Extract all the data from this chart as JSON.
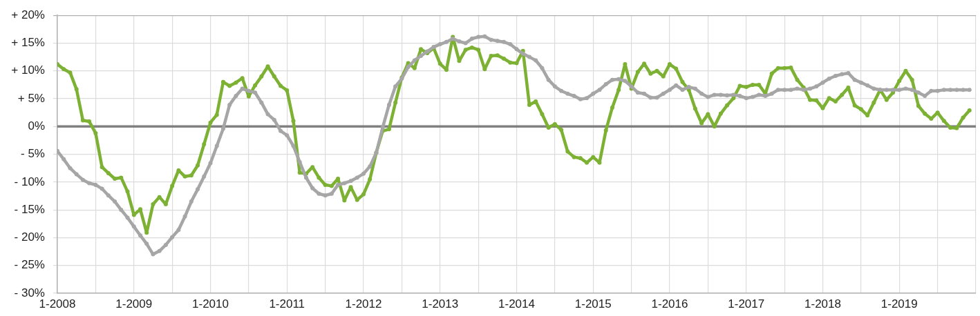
{
  "chart_data": {
    "type": "line",
    "x": [
      "2008-01",
      "2008-02",
      "2008-03",
      "2008-04",
      "2008-05",
      "2008-06",
      "2008-07",
      "2008-08",
      "2008-09",
      "2008-10",
      "2008-11",
      "2008-12",
      "2009-01",
      "2009-02",
      "2009-03",
      "2009-04",
      "2009-05",
      "2009-06",
      "2009-07",
      "2009-08",
      "2009-09",
      "2009-10",
      "2009-11",
      "2009-12",
      "2010-01",
      "2010-02",
      "2010-03",
      "2010-04",
      "2010-05",
      "2010-06",
      "2010-07",
      "2010-08",
      "2010-09",
      "2010-10",
      "2010-11",
      "2010-12",
      "2011-01",
      "2011-02",
      "2011-03",
      "2011-04",
      "2011-05",
      "2011-06",
      "2011-07",
      "2011-08",
      "2011-09",
      "2011-10",
      "2011-11",
      "2011-12",
      "2012-01",
      "2012-02",
      "2012-03",
      "2012-04",
      "2012-05",
      "2012-06",
      "2012-07",
      "2012-08",
      "2012-09",
      "2012-10",
      "2012-11",
      "2012-12",
      "2013-01",
      "2013-02",
      "2013-03",
      "2013-04",
      "2013-05",
      "2013-06",
      "2013-07",
      "2013-08",
      "2013-09",
      "2013-10",
      "2013-11",
      "2013-12",
      "2014-01",
      "2014-02",
      "2014-03",
      "2014-04",
      "2014-05",
      "2014-06",
      "2014-07",
      "2014-08",
      "2014-09",
      "2014-10",
      "2014-11",
      "2014-12",
      "2015-01",
      "2015-02",
      "2015-03",
      "2015-04",
      "2015-05",
      "2015-06",
      "2015-07",
      "2015-08",
      "2015-09",
      "2015-10",
      "2015-11",
      "2015-12",
      "2016-01",
      "2016-02",
      "2016-03",
      "2016-04",
      "2016-05",
      "2016-06",
      "2016-07",
      "2016-08",
      "2016-09",
      "2016-10",
      "2016-11",
      "2016-12",
      "2017-01",
      "2017-02",
      "2017-03",
      "2017-04",
      "2017-05",
      "2017-06",
      "2017-07",
      "2017-08",
      "2017-09",
      "2017-10",
      "2017-11",
      "2017-12",
      "2018-01",
      "2018-02",
      "2018-03",
      "2018-04",
      "2018-05",
      "2018-06",
      "2018-07",
      "2018-08",
      "2018-09",
      "2018-10",
      "2018-11",
      "2018-12",
      "2019-01",
      "2019-02",
      "2019-03",
      "2019-04",
      "2019-05",
      "2019-06",
      "2019-07",
      "2019-08",
      "2019-09",
      "2019-10",
      "2019-11",
      "2019-12"
    ],
    "series": [
      {
        "color": "#a6a6a6",
        "values": [
          -4.4,
          -5.9,
          -7.5,
          -8.6,
          -9.6,
          -10.2,
          -10.5,
          -11.2,
          -12.4,
          -13.5,
          -15.0,
          -16.4,
          -18.0,
          -19.6,
          -21.1,
          -23.0,
          -22.4,
          -21.3,
          -19.9,
          -18.6,
          -16.2,
          -13.5,
          -11.3,
          -9.0,
          -6.6,
          -3.5,
          -0.4,
          3.9,
          5.5,
          6.8,
          6.4,
          6.1,
          4.3,
          2.2,
          1.2,
          -0.8,
          -1.6,
          -3.5,
          -6.4,
          -9.2,
          -11.1,
          -12.1,
          -12.4,
          -12.1,
          -10.5,
          -10.2,
          -9.8,
          -9.2,
          -8.5,
          -7.2,
          -4.7,
          -0.2,
          3.9,
          7.2,
          8.6,
          10.7,
          11.9,
          12.7,
          13.5,
          14.3,
          14.8,
          15.2,
          15.8,
          15.3,
          15.0,
          15.8,
          16.1,
          16.2,
          15.6,
          15.4,
          15.2,
          14.8,
          13.9,
          13.1,
          12.5,
          11.9,
          10.5,
          8.4,
          7.2,
          6.4,
          5.9,
          5.5,
          4.9,
          5.1,
          5.9,
          6.6,
          7.6,
          8.4,
          8.5,
          8.2,
          7.2,
          6.1,
          5.9,
          5.2,
          5.2,
          5.9,
          6.6,
          7.4,
          6.6,
          7.1,
          6.8,
          5.9,
          5.3,
          5.7,
          5.7,
          5.6,
          5.7,
          5.5,
          5.1,
          5.3,
          5.7,
          5.5,
          5.9,
          6.6,
          6.6,
          6.6,
          6.8,
          6.6,
          6.8,
          7.2,
          7.9,
          8.6,
          9.1,
          9.4,
          9.6,
          8.4,
          7.9,
          7.4,
          6.8,
          6.6,
          6.6,
          6.6,
          6.6,
          6.8,
          6.6,
          6.1,
          5.5,
          6.4,
          6.4,
          6.6,
          6.6,
          6.6,
          6.6,
          6.6
        ]
      },
      {
        "color": "#7db134",
        "values": [
          11.2,
          10.3,
          9.7,
          6.7,
          1.1,
          0.9,
          -1.2,
          -7.3,
          -8.4,
          -9.4,
          -9.2,
          -11.7,
          -15.9,
          -14.9,
          -19.1,
          -14.0,
          -12.7,
          -14.0,
          -10.7,
          -7.9,
          -9.0,
          -8.8,
          -7.0,
          -3.2,
          0.7,
          2.1,
          8.0,
          7.3,
          7.9,
          8.7,
          5.4,
          7.4,
          9.0,
          10.8,
          9.0,
          7.3,
          6.5,
          1.0,
          -8.3,
          -8.5,
          -7.3,
          -9.2,
          -10.5,
          -10.7,
          -9.4,
          -13.3,
          -10.9,
          -13.2,
          -12.2,
          -9.5,
          -4.7,
          -0.8,
          -0.5,
          4.3,
          8.8,
          11.4,
          10.5,
          13.9,
          13.2,
          14.1,
          11.3,
          10.2,
          16.1,
          11.8,
          13.8,
          14.2,
          13.8,
          10.3,
          12.7,
          12.8,
          12.2,
          11.5,
          11.4,
          13.6,
          3.9,
          4.5,
          2.2,
          -0.2,
          0.4,
          -0.6,
          -4.5,
          -5.5,
          -5.7,
          -6.5,
          -5.5,
          -6.5,
          -0.7,
          3.4,
          6.6,
          11.2,
          6.8,
          9.8,
          11.3,
          9.5,
          10.0,
          9.0,
          11.2,
          10.4,
          8.0,
          6.6,
          3.2,
          0.6,
          2.2,
          0.0,
          2.3,
          3.8,
          5.1,
          7.3,
          7.1,
          7.5,
          7.5,
          5.9,
          9.5,
          10.5,
          10.5,
          10.6,
          8.4,
          7.0,
          4.8,
          4.7,
          3.3,
          5.1,
          4.5,
          5.7,
          7.0,
          3.8,
          3.1,
          2.0,
          4.3,
          6.6,
          4.8,
          6.1,
          8.2,
          10.0,
          8.4,
          3.7,
          2.3,
          1.4,
          2.5,
          1.0,
          -0.2,
          -0.3,
          1.6,
          2.9
        ]
      }
    ],
    "xlim": [
      "2008-01",
      "2020-01"
    ],
    "xticks": [
      {
        "value": "2008-01",
        "label": "1-2008"
      },
      {
        "value": "2008-07",
        "label": null
      },
      {
        "value": "2009-01",
        "label": "1-2009"
      },
      {
        "value": "2009-07",
        "label": null
      },
      {
        "value": "2010-01",
        "label": "1-2010"
      },
      {
        "value": "2010-07",
        "label": null
      },
      {
        "value": "2011-01",
        "label": "1-2011"
      },
      {
        "value": "2011-07",
        "label": null
      },
      {
        "value": "2012-01",
        "label": "1-2012"
      },
      {
        "value": "2012-07",
        "label": null
      },
      {
        "value": "2013-01",
        "label": "1-2013"
      },
      {
        "value": "2013-07",
        "label": null
      },
      {
        "value": "2014-01",
        "label": "1-2014"
      },
      {
        "value": "2014-07",
        "label": null
      },
      {
        "value": "2015-01",
        "label": "1-2015"
      },
      {
        "value": "2015-07",
        "label": null
      },
      {
        "value": "2016-01",
        "label": "1-2016"
      },
      {
        "value": "2016-07",
        "label": null
      },
      {
        "value": "2017-01",
        "label": "1-2017"
      },
      {
        "value": "2017-07",
        "label": null
      },
      {
        "value": "2018-01",
        "label": "1-2018"
      },
      {
        "value": "2018-07",
        "label": null
      },
      {
        "value": "2019-01",
        "label": "1-2019"
      },
      {
        "value": "2019-07",
        "label": null
      },
      {
        "value": "2020-01",
        "label": null
      }
    ],
    "ylim": [
      -30,
      20
    ],
    "yticks": [
      {
        "value": -30,
        "label": "- 30%"
      },
      {
        "value": -25,
        "label": "- 25%"
      },
      {
        "value": -20,
        "label": "- 20%"
      },
      {
        "value": -15,
        "label": "- 15%"
      },
      {
        "value": -10,
        "label": "- 10%"
      },
      {
        "value": -5,
        "label": "- 5%"
      },
      {
        "value": 0,
        "label": "0%"
      },
      {
        "value": 5,
        "label": "+ 5%"
      },
      {
        "value": 10,
        "label": "+ 10%"
      },
      {
        "value": 15,
        "label": "+ 15%"
      },
      {
        "value": 20,
        "label": "+ 20%"
      }
    ],
    "ref_lines": [
      {
        "axis": "y",
        "value": 0,
        "color": "#808080"
      }
    ],
    "grid": true,
    "legend": false,
    "marker": "circle",
    "line_style": "solid"
  }
}
